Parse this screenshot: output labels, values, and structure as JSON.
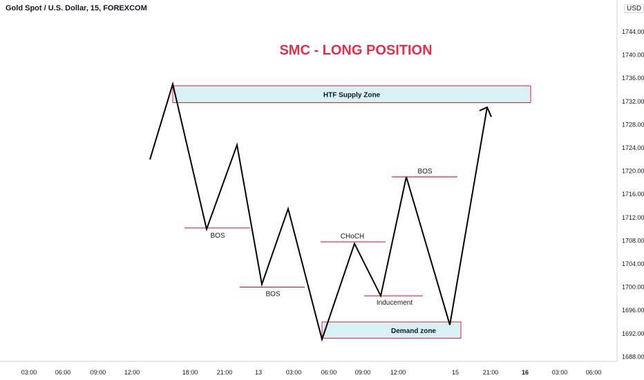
{
  "header": {
    "symbol": "Gold Spot / U.S. Dollar, 15, FOREXCOM",
    "currency": "USD"
  },
  "chart_data": {
    "type": "line",
    "title": "SMC - LONG POSITION",
    "price_ticks": [
      1744,
      1740,
      1736,
      1732,
      1728,
      1724,
      1720,
      1716,
      1712,
      1708,
      1704,
      1700,
      1696,
      1692,
      1688
    ],
    "price_tick_labels": [
      "1744.00",
      "1740.00",
      "1736.00",
      "1732.00",
      "1728.00",
      "1724.00",
      "1720.00",
      "1716.00",
      "1712.00",
      "1708.00",
      "1704.00",
      "1700.00",
      "1696.00",
      "1692.00",
      "1688.00"
    ],
    "ylim": [
      1687.5,
      1748.5
    ],
    "time_labels": [
      {
        "label": "03:00",
        "bold": false
      },
      {
        "label": "06:00",
        "bold": false
      },
      {
        "label": "09:00",
        "bold": false
      },
      {
        "label": "12:00",
        "bold": false
      },
      {
        "label": "18:00",
        "bold": false
      },
      {
        "label": "21:00",
        "bold": false
      },
      {
        "label": "13",
        "bold": false
      },
      {
        "label": "03:00",
        "bold": false
      },
      {
        "label": "06:00",
        "bold": false
      },
      {
        "label": "09:00",
        "bold": false
      },
      {
        "label": "12:00",
        "bold": false
      },
      {
        "label": "15",
        "bold": false
      },
      {
        "label": "21:00",
        "bold": false
      },
      {
        "label": "16",
        "bold": true
      },
      {
        "label": "03:00",
        "bold": false
      },
      {
        "label": "06:00",
        "bold": false
      }
    ],
    "series": [
      {
        "values": [
          1722,
          1735,
          1710,
          1724.5,
          1700.5,
          1713.5,
          1691,
          1707.5,
          1698.5,
          1719,
          1693.5,
          1731
        ]
      }
    ],
    "levels": [
      {
        "label": "BOS",
        "price": 1710.2
      },
      {
        "label": "BOS",
        "price": 1700.0
      },
      {
        "label": "CHoCH",
        "price": 1707.8
      },
      {
        "label": "Inducement",
        "price": 1698.5
      },
      {
        "label": "BOS",
        "price": 1719.0
      }
    ],
    "zones": [
      {
        "label": "HTF Supply Zone",
        "price_top": 1734.7,
        "price_bottom": 1731.8
      },
      {
        "label": "Demand zone",
        "price_top": 1694.0,
        "price_bottom": 1691.2
      }
    ],
    "colors": {
      "line": "#000000",
      "level": "#e91e38",
      "zone_fill": "#d7f1f4",
      "zone_border": "#e91e38",
      "title": "#e3304a"
    }
  }
}
